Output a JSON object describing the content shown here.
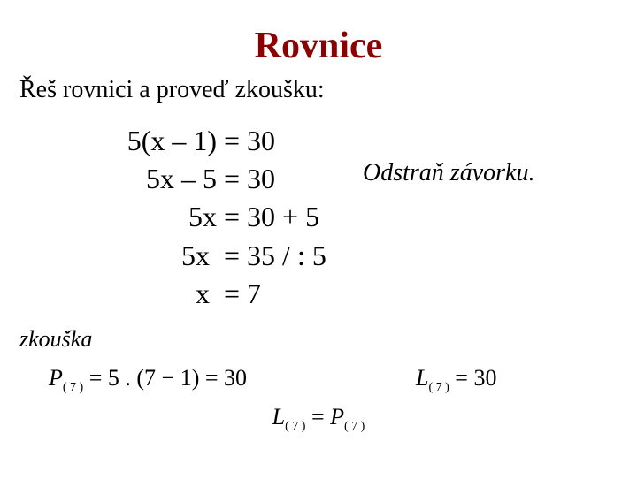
{
  "title": "Rovnice",
  "subtitle": "Řeš rovnici a proveď zkoušku:",
  "annotation": "Odstraň závorku.",
  "equations": {
    "line1_left": "5(x – 1)",
    "line1_right": " = 30",
    "line2_left": "5x – 5",
    "line2_right": " = 30",
    "line3_left": "5x",
    "line3_right": " = 30 + 5",
    "line4_left": "5x ",
    "line4_right": " = 35 / : 5",
    "line5_left": "x ",
    "line5_right": " = 7"
  },
  "check_label": "zkouška",
  "check": {
    "p_var": "P",
    "l_var": "L",
    "sub": "( 7 )",
    "p_expr": " = 5 . (7 − 1) = 30",
    "l_expr": " = 30",
    "eq_sign": " = "
  },
  "colors": {
    "title": "#8b0000",
    "text": "#000000",
    "background": "#ffffff"
  },
  "fonts": {
    "family": "Times New Roman",
    "title_size": 42,
    "subtitle_size": 28,
    "equation_size": 32,
    "check_size": 26,
    "subscript_size": 14
  }
}
